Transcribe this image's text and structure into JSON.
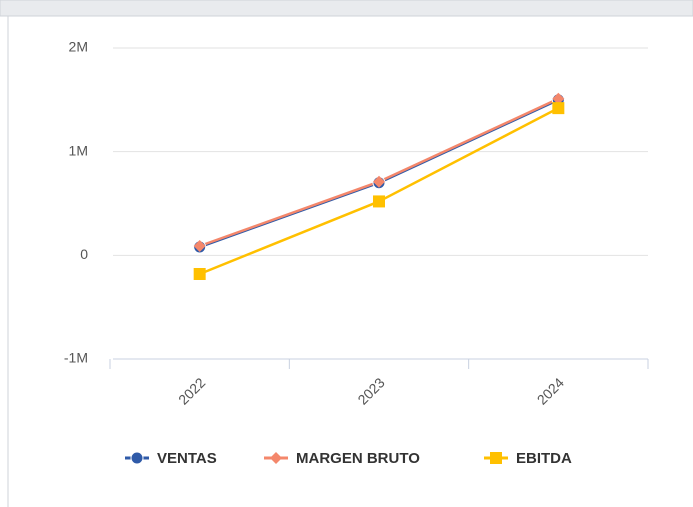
{
  "chart_data": {
    "type": "line",
    "categories": [
      "2022",
      "2023",
      "2024"
    ],
    "series": [
      {
        "name": "VENTAS",
        "color": "#2f5aa8",
        "marker": "circle",
        "values": [
          80000,
          700000,
          1500000
        ]
      },
      {
        "name": "MARGEN BRUTO",
        "color": "#f4876b",
        "marker": "diamond",
        "values": [
          90000,
          710000,
          1510000
        ]
      },
      {
        "name": "EBITDA",
        "color": "#ffc000",
        "marker": "square",
        "values": [
          -180000,
          520000,
          1420000
        ]
      }
    ],
    "ylim": [
      -1000000,
      2000000
    ],
    "yticks": [
      {
        "value": -1000000,
        "label": "-1M"
      },
      0,
      {
        "value": 1000000,
        "label": "1M"
      },
      {
        "value": 2000000,
        "label": "2M"
      }
    ],
    "grid": true,
    "legend": "bottom"
  }
}
